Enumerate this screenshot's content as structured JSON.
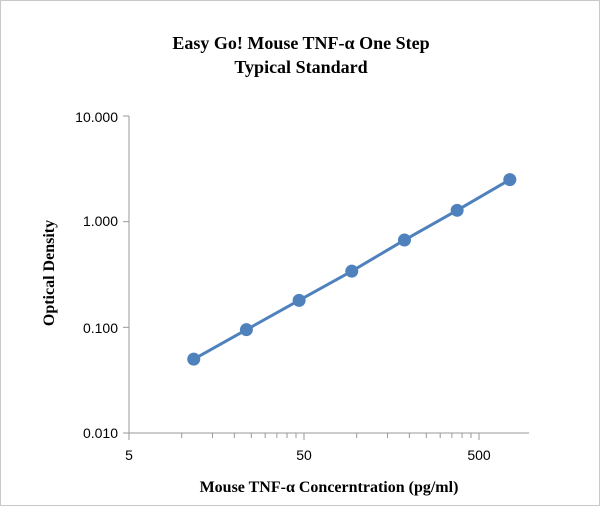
{
  "chart_data": {
    "type": "line",
    "title_lines": [
      "Easy Go! Mouse TNF-α One Step",
      "Typical Standard"
    ],
    "xlabel": "Mouse TNF-α Concerntration (pg/ml)",
    "ylabel": "Optical Density",
    "x_scale": "log",
    "y_scale": "log",
    "xlim": [
      5,
      1000
    ],
    "ylim": [
      0.01,
      10
    ],
    "x_tick_labels": [
      "5",
      "50",
      "500"
    ],
    "y_tick_labels": [
      "10.000",
      "1.000",
      "0.100",
      "0.010"
    ],
    "grid": false,
    "legend": "none",
    "series": [
      {
        "x": [
          11.72,
          23.44,
          46.88,
          93.75,
          187.5,
          375,
          750
        ],
        "values": [
          0.05,
          0.095,
          0.18,
          0.34,
          0.67,
          1.28,
          2.5
        ],
        "color": "#4F81BD"
      }
    ]
  }
}
